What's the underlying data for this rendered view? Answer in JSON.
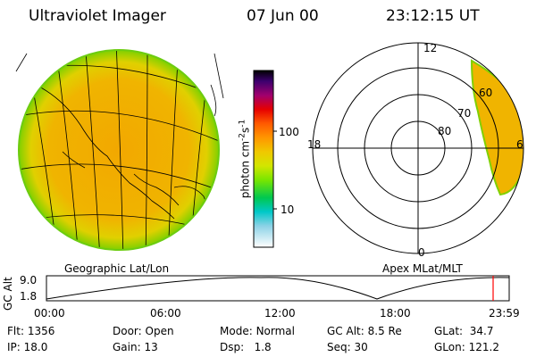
{
  "header": {
    "title": "Ultraviolet Imager",
    "date": "07 Jun 00",
    "time": "23:12:15 UT"
  },
  "colorbar": {
    "unit_label": "photon cm",
    "unit_exp1": "-2",
    "unit_mid": "s",
    "unit_exp2": "-1",
    "tick_high": "100",
    "tick_low": "10",
    "colors": [
      "#000000",
      "#5a0078",
      "#c80078",
      "#ff0000",
      "#ff7800",
      "#ffb400",
      "#e6dc00",
      "#a0e600",
      "#00c800",
      "#00c8c8",
      "#78d2e6",
      "#ffffff"
    ]
  },
  "left_panel": {
    "label": "Geographic Lat/Lon",
    "fill_color": "#f0b400",
    "edge_color": "#90d400"
  },
  "right_panel": {
    "label": "Apex MLat/MLT",
    "mlt_top": "12",
    "mlt_left": "18",
    "mlt_right": "6",
    "mlt_bottom": "0",
    "lat_labels": [
      "60",
      "70",
      "80"
    ]
  },
  "altitude_plot": {
    "y_axis_label": "GC Alt",
    "y_ticks": [
      "9.0",
      "1.8"
    ],
    "x_ticks": [
      "00:00",
      "06:00",
      "12:00",
      "18:00",
      "23:59"
    ],
    "cursor_color": "#ff0000"
  },
  "footer": {
    "flt_label": "Flt:",
    "flt_value": "1356",
    "ip_label": "IP:",
    "ip_value": "18.0",
    "door_label": "Door:",
    "door_value": "Open",
    "gain_label": "Gain:",
    "gain_value": "13",
    "mode_label": "Mode:",
    "mode_value": "Normal",
    "dsp_label": "Dsp:",
    "dsp_value": "1.8",
    "gcalt_label": "GC Alt:",
    "gcalt_value": "8.5 Re",
    "seq_label": "Seq:",
    "seq_value": "30",
    "glat_label": "GLat:",
    "glat_value": "34.7",
    "glon_label": "GLon:",
    "glon_value": "121.2"
  }
}
